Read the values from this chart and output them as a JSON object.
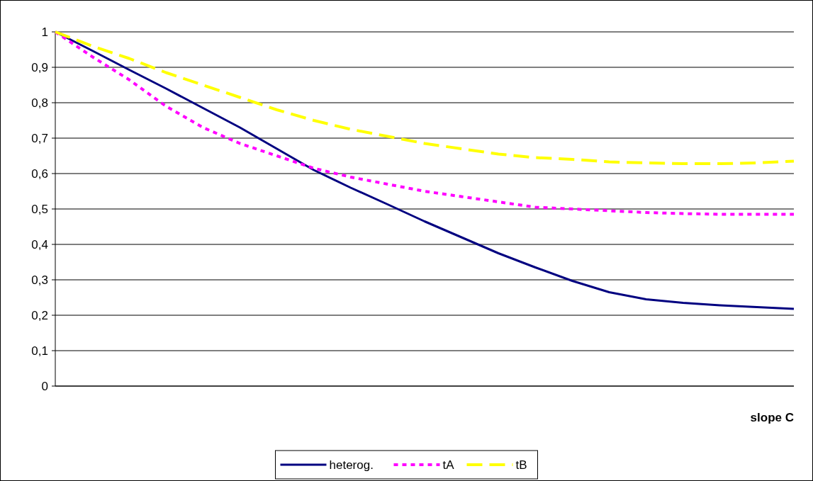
{
  "chart_data": {
    "type": "line",
    "xlabel": "slope C",
    "categories": [
      null,
      null,
      null,
      null,
      null,
      null,
      null,
      null,
      null,
      null,
      null,
      null,
      null,
      null,
      null,
      null,
      null,
      null,
      null,
      null,
      null
    ],
    "series": [
      {
        "name": "heterog.",
        "color": "#000080",
        "line_style": "solid",
        "values": [
          1.0,
          0.947,
          0.893,
          0.84,
          0.785,
          0.73,
          0.67,
          0.61,
          0.56,
          0.513,
          0.465,
          0.42,
          0.375,
          0.335,
          0.297,
          0.265,
          0.245,
          0.235,
          0.228,
          0.223,
          0.218
        ]
      },
      {
        "name": "tA",
        "color": "#ff00ff",
        "line_style": "dotted",
        "values": [
          1.0,
          0.93,
          0.865,
          0.79,
          0.73,
          0.685,
          0.65,
          0.615,
          0.59,
          0.57,
          0.55,
          0.535,
          0.52,
          0.505,
          0.5,
          0.495,
          0.49,
          0.487,
          0.485,
          0.485,
          0.485
        ]
      },
      {
        "name": "tB",
        "color": "#ffff00",
        "line_style": "dashed",
        "values": [
          1.0,
          0.96,
          0.925,
          0.885,
          0.85,
          0.815,
          0.78,
          0.75,
          0.725,
          0.705,
          0.685,
          0.67,
          0.655,
          0.645,
          0.64,
          0.633,
          0.63,
          0.628,
          0.628,
          0.63,
          0.635
        ]
      }
    ],
    "ylim": [
      0,
      1
    ],
    "yticks": [
      {
        "value": 0,
        "label": "0"
      },
      {
        "value": 0.1,
        "label": "0,1"
      },
      {
        "value": 0.2,
        "label": "0,2"
      },
      {
        "value": 0.3,
        "label": "0,3"
      },
      {
        "value": 0.4,
        "label": "0,4"
      },
      {
        "value": 0.5,
        "label": "0,5"
      },
      {
        "value": 0.6,
        "label": "0,6"
      },
      {
        "value": 0.7,
        "label": "0,7"
      },
      {
        "value": 0.8,
        "label": "0,8"
      },
      {
        "value": 0.9,
        "label": "0,9"
      },
      {
        "value": 1,
        "label": "1"
      }
    ],
    "grid": "y",
    "legend": "bottom",
    "marker": "none",
    "tick_labels": "y"
  }
}
